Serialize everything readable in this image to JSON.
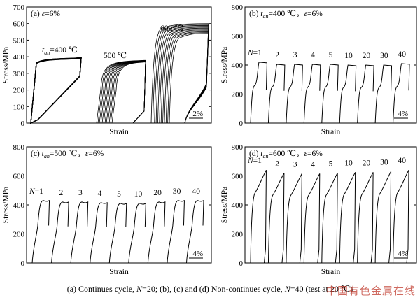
{
  "chart_data": [
    {
      "type": "line",
      "panel_label": "(a)",
      "title_parts": [
        "(a)",
        "ε",
        "=6%"
      ],
      "ylabel": "Stress/MPa",
      "xlabel": "Strain",
      "ylim": [
        0,
        700
      ],
      "yticks": [
        0,
        100,
        200,
        300,
        400,
        500,
        600,
        700
      ],
      "scale_bar": "2%",
      "series": [
        {
          "name": "t_an=400 ℃",
          "label_parts": [
            "t",
            "an",
            "=400 ℃"
          ],
          "max_stress": 390,
          "initial_stress": 395,
          "cycles": 20
        },
        {
          "name": "500 ℃",
          "max_stress": 360,
          "initial_stress": 370,
          "cycles": 20
        },
        {
          "name": "600 ℃",
          "max_stress": 540,
          "initial_stress": 560,
          "cycles": 20
        }
      ]
    },
    {
      "type": "line",
      "panel_label": "(b)",
      "title_parts": [
        "(b)",
        "t",
        "an",
        "=400 ℃，",
        "ε",
        "=6%"
      ],
      "ylabel": "Stress/MPa",
      "xlabel": "Strain",
      "ylim": [
        0,
        800
      ],
      "yticks": [
        0,
        200,
        400,
        600,
        800
      ],
      "scale_bar": "4%",
      "categories": [
        "N=1",
        "2",
        "3",
        "4",
        "5",
        "10",
        "20",
        "30",
        "40"
      ],
      "values": [
        420,
        405,
        405,
        405,
        405,
        400,
        400,
        400,
        410
      ]
    },
    {
      "type": "line",
      "panel_label": "(c)",
      "title_parts": [
        "(c)",
        "t",
        "an",
        "=500 ℃，",
        "ε",
        "=6%"
      ],
      "ylabel": "Stress/MPa",
      "xlabel": "Strain",
      "ylim": [
        0,
        800
      ],
      "yticks": [
        0,
        200,
        400,
        600,
        800
      ],
      "scale_bar": "4%",
      "categories": [
        "N=1",
        "2",
        "3",
        "4",
        "5",
        "10",
        "20",
        "30",
        "40"
      ],
      "values": [
        430,
        420,
        420,
        415,
        410,
        410,
        420,
        430,
        430
      ]
    },
    {
      "type": "line",
      "panel_label": "(d)",
      "title_parts": [
        "(d)",
        "t",
        "an",
        "=600 ℃，",
        "ε",
        "=6%"
      ],
      "ylabel": "Stress/MPa",
      "xlabel": "Strain",
      "ylim": [
        0,
        800
      ],
      "yticks": [
        0,
        200,
        400,
        600,
        800
      ],
      "scale_bar": "4%",
      "categories": [
        "N=1",
        "2",
        "3",
        "4",
        "5",
        "10",
        "20",
        "30",
        "40"
      ],
      "values": [
        640,
        620,
        615,
        615,
        620,
        625,
        625,
        630,
        640
      ]
    }
  ],
  "caption": "(a) Continues cycle, N=20; (b), (c) and (d) Non-continues cycle, N=40 (test at 20 ℃)",
  "caption_parts": [
    "(a) Continues cycle, ",
    "N",
    "=20; (b), (c) and (d) Non-continues cycle, ",
    "N",
    "=40 (test at 20 ℃)"
  ],
  "watermark": "中国有色金属在线",
  "colors": {
    "line": "#000000",
    "watermark": "#c0392b"
  }
}
